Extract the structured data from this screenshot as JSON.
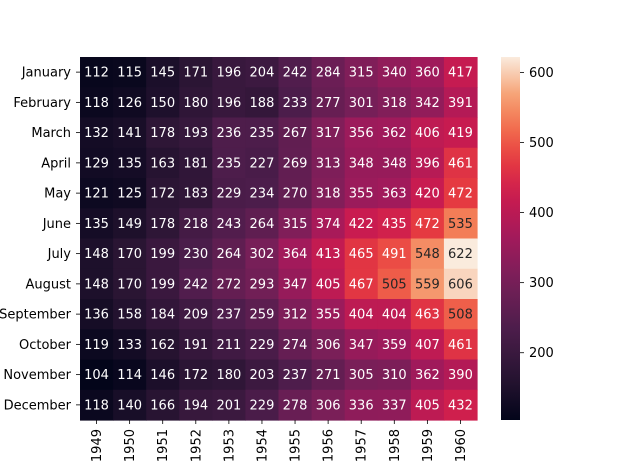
{
  "chart_data": {
    "type": "heatmap",
    "title": "",
    "xlabel": "",
    "ylabel": "",
    "x": [
      "1949",
      "1950",
      "1951",
      "1952",
      "1953",
      "1954",
      "1955",
      "1956",
      "1957",
      "1958",
      "1959",
      "1960"
    ],
    "y": [
      "January",
      "February",
      "March",
      "April",
      "May",
      "June",
      "July",
      "August",
      "September",
      "October",
      "November",
      "December"
    ],
    "values": [
      [
        112,
        115,
        145,
        171,
        196,
        204,
        242,
        284,
        315,
        340,
        360,
        417
      ],
      [
        118,
        126,
        150,
        180,
        196,
        188,
        233,
        277,
        301,
        318,
        342,
        391
      ],
      [
        132,
        141,
        178,
        193,
        236,
        235,
        267,
        317,
        356,
        362,
        406,
        419
      ],
      [
        129,
        135,
        163,
        181,
        235,
        227,
        269,
        313,
        348,
        348,
        396,
        461
      ],
      [
        121,
        125,
        172,
        183,
        229,
        234,
        270,
        318,
        355,
        363,
        420,
        472
      ],
      [
        135,
        149,
        178,
        218,
        243,
        264,
        315,
        374,
        422,
        435,
        472,
        535
      ],
      [
        148,
        170,
        199,
        230,
        264,
        302,
        364,
        413,
        465,
        491,
        548,
        622
      ],
      [
        148,
        170,
        199,
        242,
        272,
        293,
        347,
        405,
        467,
        505,
        559,
        606
      ],
      [
        136,
        158,
        184,
        209,
        237,
        259,
        312,
        355,
        404,
        404,
        463,
        508
      ],
      [
        119,
        133,
        162,
        191,
        211,
        229,
        274,
        306,
        347,
        359,
        407,
        461
      ],
      [
        104,
        114,
        146,
        172,
        180,
        203,
        237,
        271,
        305,
        310,
        362,
        390
      ],
      [
        118,
        140,
        166,
        194,
        201,
        229,
        278,
        306,
        336,
        337,
        405,
        432
      ]
    ],
    "colorbar": {
      "min": 104,
      "max": 622,
      "ticks": [
        200,
        300,
        400,
        500,
        600
      ]
    },
    "colormap": "rocket",
    "annotations": true,
    "grid": false
  }
}
